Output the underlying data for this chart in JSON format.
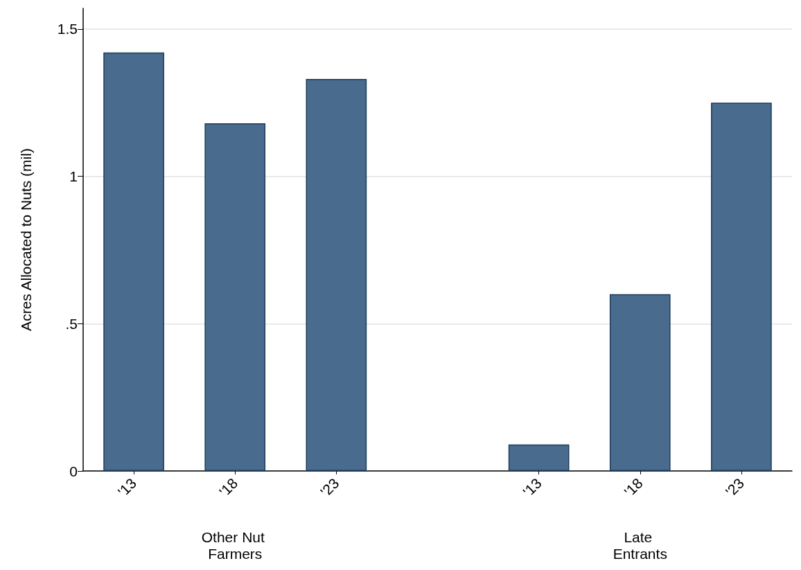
{
  "chart_data": {
    "type": "bar",
    "ylabel": "Acres Allocated to Nuts (mil)",
    "categories": [
      "'13",
      "'18",
      "'23",
      null,
      "'13",
      "'18",
      "'23"
    ],
    "values": [
      1.42,
      1.18,
      1.33,
      null,
      0.09,
      0.6,
      1.25
    ],
    "color": "#486b8e",
    "ylim": [
      0,
      1.57
    ],
    "yticks": [
      0,
      {
        "value": 0.5,
        "label": ".5"
      },
      1,
      1.5
    ],
    "grid": "y",
    "annotations": [
      "Other Nut Farmers",
      "Late Entrants"
    ]
  }
}
